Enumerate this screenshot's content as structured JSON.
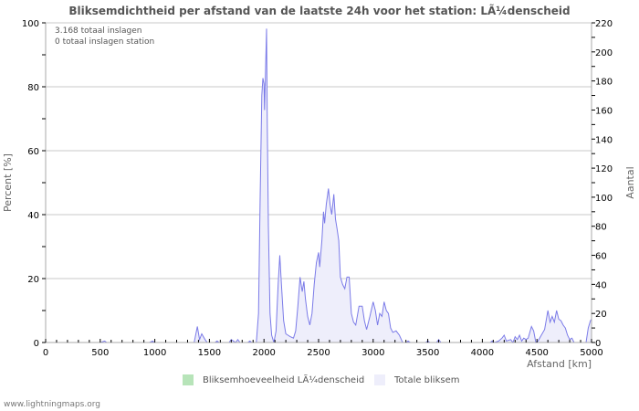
{
  "title": "Bliksemdichtheid per afstand van de laatste 24h voor het station: LÃ¼denscheid",
  "info": {
    "line1": "3.168 totaal inslagen",
    "line2": "0 totaal inslagen station"
  },
  "legend": [
    {
      "label": "Bliksemhoeveelheid LÃ¼denscheid",
      "color": "#b7e4b9"
    },
    {
      "label": "Totale bliksem",
      "color": "#eeeefb"
    }
  ],
  "footer": "www.lightningmaps.org",
  "chart_data": {
    "type": "area",
    "title": "Bliksemdichtheid per afstand van de laatste 24h voor het station: LÃ¼denscheid",
    "xlabel": "Afstand   [km]",
    "ylabel_left": "Percent   [%]",
    "ylabel_right": "Aantal",
    "xlim": [
      0,
      5000
    ],
    "ylim_left": [
      0,
      100
    ],
    "ylim_right": [
      0,
      220
    ],
    "x_ticks": [
      0,
      500,
      1000,
      1500,
      2000,
      2500,
      3000,
      3500,
      4000,
      4500,
      5000
    ],
    "y_ticks_left": [
      0,
      20,
      40,
      60,
      80,
      100
    ],
    "y_ticks_right": [
      0,
      20,
      40,
      60,
      80,
      100,
      120,
      140,
      160,
      180,
      200,
      220
    ],
    "grid": true,
    "legend_position": "bottom",
    "series": [
      {
        "name": "Totale bliksem",
        "axis": "right",
        "line_color": "#7b7be8",
        "fill_color": "#eeeefb",
        "points": [
          [
            0,
            0
          ],
          [
            500,
            0
          ],
          [
            540,
            1
          ],
          [
            560,
            0
          ],
          [
            950,
            0
          ],
          [
            980,
            1
          ],
          [
            1000,
            0
          ],
          [
            1360,
            0
          ],
          [
            1390,
            11
          ],
          [
            1410,
            2
          ],
          [
            1430,
            6
          ],
          [
            1460,
            2
          ],
          [
            1480,
            0
          ],
          [
            1550,
            0
          ],
          [
            1570,
            1
          ],
          [
            1590,
            0
          ],
          [
            1680,
            0
          ],
          [
            1700,
            2
          ],
          [
            1720,
            1
          ],
          [
            1740,
            0
          ],
          [
            1760,
            2
          ],
          [
            1780,
            0
          ],
          [
            1850,
            0
          ],
          [
            1870,
            1
          ],
          [
            1890,
            0
          ],
          [
            1930,
            0
          ],
          [
            1950,
            20
          ],
          [
            1965,
            100
          ],
          [
            1980,
            170
          ],
          [
            1990,
            182
          ],
          [
            2000,
            178
          ],
          [
            2005,
            160
          ],
          [
            2015,
            190
          ],
          [
            2023,
            216
          ],
          [
            2030,
            150
          ],
          [
            2040,
            80
          ],
          [
            2055,
            20
          ],
          [
            2070,
            5
          ],
          [
            2090,
            0
          ],
          [
            2110,
            8
          ],
          [
            2130,
            40
          ],
          [
            2145,
            60
          ],
          [
            2160,
            40
          ],
          [
            2180,
            15
          ],
          [
            2200,
            6
          ],
          [
            2240,
            4
          ],
          [
            2270,
            3
          ],
          [
            2290,
            8
          ],
          [
            2310,
            25
          ],
          [
            2330,
            45
          ],
          [
            2350,
            35
          ],
          [
            2365,
            42
          ],
          [
            2380,
            30
          ],
          [
            2400,
            18
          ],
          [
            2420,
            12
          ],
          [
            2440,
            20
          ],
          [
            2460,
            40
          ],
          [
            2480,
            55
          ],
          [
            2500,
            62
          ],
          [
            2510,
            52
          ],
          [
            2530,
            70
          ],
          [
            2545,
            90
          ],
          [
            2555,
            82
          ],
          [
            2570,
            95
          ],
          [
            2590,
            106
          ],
          [
            2605,
            95
          ],
          [
            2620,
            88
          ],
          [
            2640,
            102
          ],
          [
            2655,
            85
          ],
          [
            2670,
            78
          ],
          [
            2685,
            70
          ],
          [
            2700,
            45
          ],
          [
            2720,
            40
          ],
          [
            2740,
            37
          ],
          [
            2760,
            45
          ],
          [
            2780,
            45
          ],
          [
            2800,
            20
          ],
          [
            2820,
            14
          ],
          [
            2840,
            12
          ],
          [
            2870,
            25
          ],
          [
            2900,
            25
          ],
          [
            2920,
            15
          ],
          [
            2940,
            9
          ],
          [
            2970,
            18
          ],
          [
            3000,
            28
          ],
          [
            3020,
            22
          ],
          [
            3040,
            12
          ],
          [
            3060,
            20
          ],
          [
            3080,
            18
          ],
          [
            3100,
            28
          ],
          [
            3120,
            22
          ],
          [
            3140,
            20
          ],
          [
            3160,
            10
          ],
          [
            3180,
            7
          ],
          [
            3210,
            8
          ],
          [
            3240,
            5
          ],
          [
            3270,
            0
          ],
          [
            3300,
            0
          ],
          [
            3320,
            1
          ],
          [
            3340,
            0
          ],
          [
            3480,
            0
          ],
          [
            3500,
            1
          ],
          [
            3520,
            0
          ],
          [
            3580,
            0
          ],
          [
            3600,
            2
          ],
          [
            3620,
            0
          ],
          [
            4070,
            0
          ],
          [
            4090,
            1
          ],
          [
            4110,
            0
          ],
          [
            4150,
            1
          ],
          [
            4180,
            3
          ],
          [
            4200,
            5
          ],
          [
            4220,
            1
          ],
          [
            4260,
            2
          ],
          [
            4280,
            0
          ],
          [
            4300,
            4
          ],
          [
            4320,
            2
          ],
          [
            4340,
            5
          ],
          [
            4360,
            1
          ],
          [
            4380,
            3
          ],
          [
            4400,
            2
          ],
          [
            4420,
            3
          ],
          [
            4450,
            11
          ],
          [
            4470,
            8
          ],
          [
            4490,
            0
          ],
          [
            4510,
            1
          ],
          [
            4540,
            5
          ],
          [
            4570,
            9
          ],
          [
            4600,
            22
          ],
          [
            4620,
            14
          ],
          [
            4640,
            18
          ],
          [
            4660,
            14
          ],
          [
            4680,
            22
          ],
          [
            4700,
            16
          ],
          [
            4720,
            15
          ],
          [
            4740,
            12
          ],
          [
            4760,
            10
          ],
          [
            4780,
            5
          ],
          [
            4800,
            2
          ],
          [
            4820,
            3
          ],
          [
            4840,
            0
          ],
          [
            4950,
            0
          ],
          [
            4970,
            10
          ],
          [
            4990,
            15
          ],
          [
            5000,
            16
          ]
        ]
      },
      {
        "name": "Bliksemhoeveelheid LÃ¼denscheid",
        "axis": "right",
        "color": "#b7e4b9",
        "points": []
      }
    ]
  }
}
